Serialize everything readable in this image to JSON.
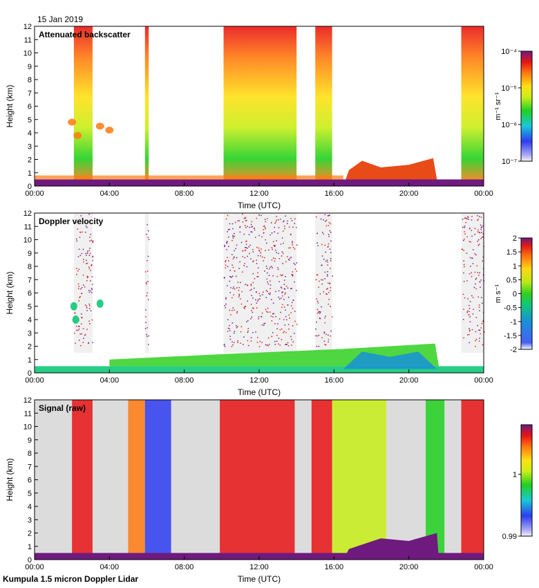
{
  "date_label": "15 Jan 2019",
  "footer_label": "Kumpula 1.5 micron Doppler Lidar",
  "x_axis": {
    "label": "Time (UTC)",
    "range_hours": [
      0,
      24
    ],
    "ticks": [
      0,
      4,
      8,
      12,
      16,
      20,
      24
    ],
    "tick_labels": [
      "00:00",
      "04:00",
      "08:00",
      "12:00",
      "16:00",
      "20:00",
      "00:00"
    ]
  },
  "y_axis": {
    "label": "Height (km)",
    "range_km": [
      0,
      12
    ],
    "ticks": [
      0,
      1,
      2,
      3,
      4,
      5,
      6,
      7,
      8,
      9,
      10,
      11,
      12
    ],
    "tick_labels": [
      "0",
      "1",
      "2",
      "3",
      "4",
      "5",
      "6",
      "7",
      "8",
      "9",
      "10",
      "11",
      "12"
    ]
  },
  "chart_data": [
    {
      "type": "heatmap",
      "title": "Attenuated backscatter",
      "xlabel": "Time (UTC)",
      "ylabel": "Height (km)",
      "ylim": [
        0,
        12
      ],
      "colorbar": {
        "scale": "log",
        "units_label": "m⁻¹ sr⁻¹",
        "ticks": [
          1e-07,
          1e-06,
          1e-05,
          0.0001
        ],
        "tick_labels": [
          "10⁻⁷",
          "10⁻⁶",
          "10⁻⁵",
          "10⁻⁴"
        ]
      },
      "features": [
        {
          "desc": "deep column",
          "start_h": 2.1,
          "end_h": 3.1,
          "top_km": 12
        },
        {
          "desc": "deep column",
          "start_h": 5.9,
          "end_h": 6.1,
          "top_km": 12
        },
        {
          "desc": "deep column",
          "start_h": 10.1,
          "end_h": 14.0,
          "top_km": 12
        },
        {
          "desc": "deep column",
          "start_h": 15.0,
          "end_h": 15.9,
          "top_km": 12
        },
        {
          "desc": "deep column",
          "start_h": 22.8,
          "end_h": 24.0,
          "top_km": 12
        },
        {
          "desc": "boundary layer aerosol",
          "start_h": 16.5,
          "end_h": 21.5,
          "top_km": 2.0
        }
      ]
    },
    {
      "type": "heatmap",
      "title": "Doppler velocity",
      "xlabel": "Time (UTC)",
      "ylabel": "Height (km)",
      "ylim": [
        0,
        12
      ],
      "colorbar": {
        "scale": "linear",
        "units_label": "m s⁻¹",
        "range": [
          -2,
          2
        ],
        "ticks": [
          -2,
          -1.5,
          -1,
          -0.5,
          0,
          0.5,
          1,
          1.5,
          2
        ],
        "tick_labels": [
          "-2",
          "-1.5",
          "-1",
          "-0.5",
          "0",
          "0.5",
          "1",
          "1.5",
          "2"
        ]
      }
    },
    {
      "type": "heatmap",
      "title": "Signal (raw)",
      "xlabel": "Time (UTC)",
      "ylabel": "Height (km)",
      "ylim": [
        0,
        12
      ],
      "colorbar": {
        "scale": "linear",
        "range": [
          0.99,
          1.008
        ],
        "ticks": [
          0.99,
          1
        ],
        "tick_labels": [
          "0.99",
          "1"
        ]
      }
    }
  ]
}
